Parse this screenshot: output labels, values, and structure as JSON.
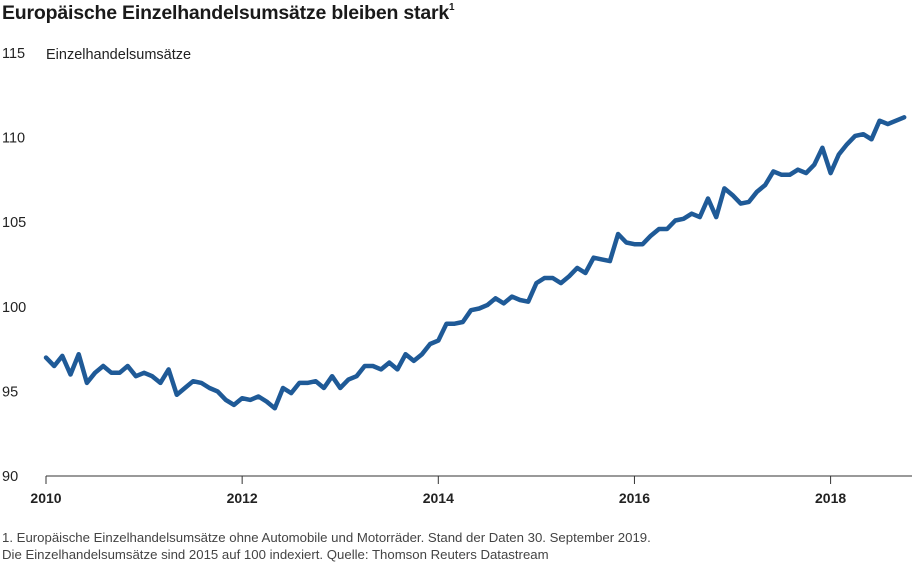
{
  "chart_data": {
    "type": "line",
    "title": "Europäische Einzelhandelsumsätze bleiben stark",
    "title_footnote_marker": "1",
    "series_label": "Einzelhandelsumsätze",
    "ylim": [
      90,
      115
    ],
    "yticks": [
      90,
      95,
      100,
      105,
      110,
      115
    ],
    "xlim": [
      2010,
      2018.83
    ],
    "xticks": [
      2010,
      2012,
      2014,
      2016,
      2018
    ],
    "x_start": 2010,
    "x_step_months": 1,
    "line_color": "#1f5a97",
    "series": [
      {
        "name": "Einzelhandelsumsätze",
        "values": [
          97.0,
          96.5,
          97.1,
          96.0,
          97.2,
          95.5,
          96.1,
          96.5,
          96.1,
          96.1,
          96.5,
          95.9,
          96.1,
          95.9,
          95.5,
          96.3,
          94.8,
          95.2,
          95.6,
          95.5,
          95.2,
          95.0,
          94.5,
          94.2,
          94.6,
          94.5,
          94.7,
          94.4,
          94.0,
          95.2,
          94.9,
          95.5,
          95.5,
          95.6,
          95.2,
          95.9,
          95.2,
          95.7,
          95.9,
          96.5,
          96.5,
          96.3,
          96.7,
          96.3,
          97.2,
          96.8,
          97.2,
          97.8,
          98.0,
          99.0,
          99.0,
          99.1,
          99.8,
          99.9,
          100.1,
          100.5,
          100.2,
          100.6,
          100.4,
          100.3,
          101.4,
          101.7,
          101.7,
          101.4,
          101.8,
          102.3,
          102.0,
          102.9,
          102.8,
          102.7,
          104.3,
          103.8,
          103.7,
          103.7,
          104.2,
          104.6,
          104.6,
          105.1,
          105.2,
          105.5,
          105.3,
          106.4,
          105.3,
          107.0,
          106.6,
          106.1,
          106.2,
          106.8,
          107.2,
          108.0,
          107.8,
          107.8,
          108.1,
          107.9,
          108.4,
          109.4,
          107.9,
          109.0,
          109.6,
          110.1,
          110.2,
          109.9,
          111.0,
          110.8,
          111.0,
          111.2
        ]
      }
    ]
  },
  "footnotes": {
    "line1": "1. Europäische Einzelhandelsumsätze ohne Automobile und Motorräder. Stand der Daten 30. September 2019.",
    "line2": "Die Einzelhandelsumsätze sind 2015 auf 100 indexiert. Quelle: Thomson Reuters Datastream"
  }
}
